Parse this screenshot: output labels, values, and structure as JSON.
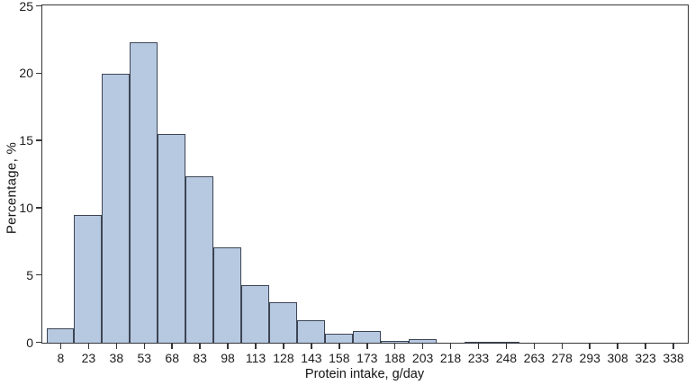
{
  "figure": {
    "background": "#ffffff"
  },
  "chart_data": {
    "type": "bar",
    "title": "",
    "xlabel": "Protein intake, g/day",
    "ylabel": "Percentage, %",
    "categories": [
      8,
      23,
      38,
      53,
      68,
      83,
      98,
      113,
      128,
      143,
      158,
      173,
      188,
      203,
      218,
      233,
      248,
      263,
      278,
      293,
      308,
      323,
      338
    ],
    "values": [
      1.1,
      9.5,
      20.0,
      22.3,
      15.5,
      12.4,
      7.1,
      4.3,
      3.0,
      1.7,
      0.7,
      0.9,
      0.15,
      0.3,
      0,
      0.05,
      0.1,
      0,
      0,
      0,
      0,
      0,
      0
    ],
    "ylim": [
      0,
      25
    ],
    "yticks": [
      0,
      5,
      10,
      15,
      20,
      25
    ],
    "grid": false,
    "legend": null,
    "bin_width_g_per_day": 15,
    "bar_fill": "#b7c9e1",
    "bar_border": "#3c4554",
    "axis_color": "#333639",
    "text_color": "#1c1c1c"
  }
}
